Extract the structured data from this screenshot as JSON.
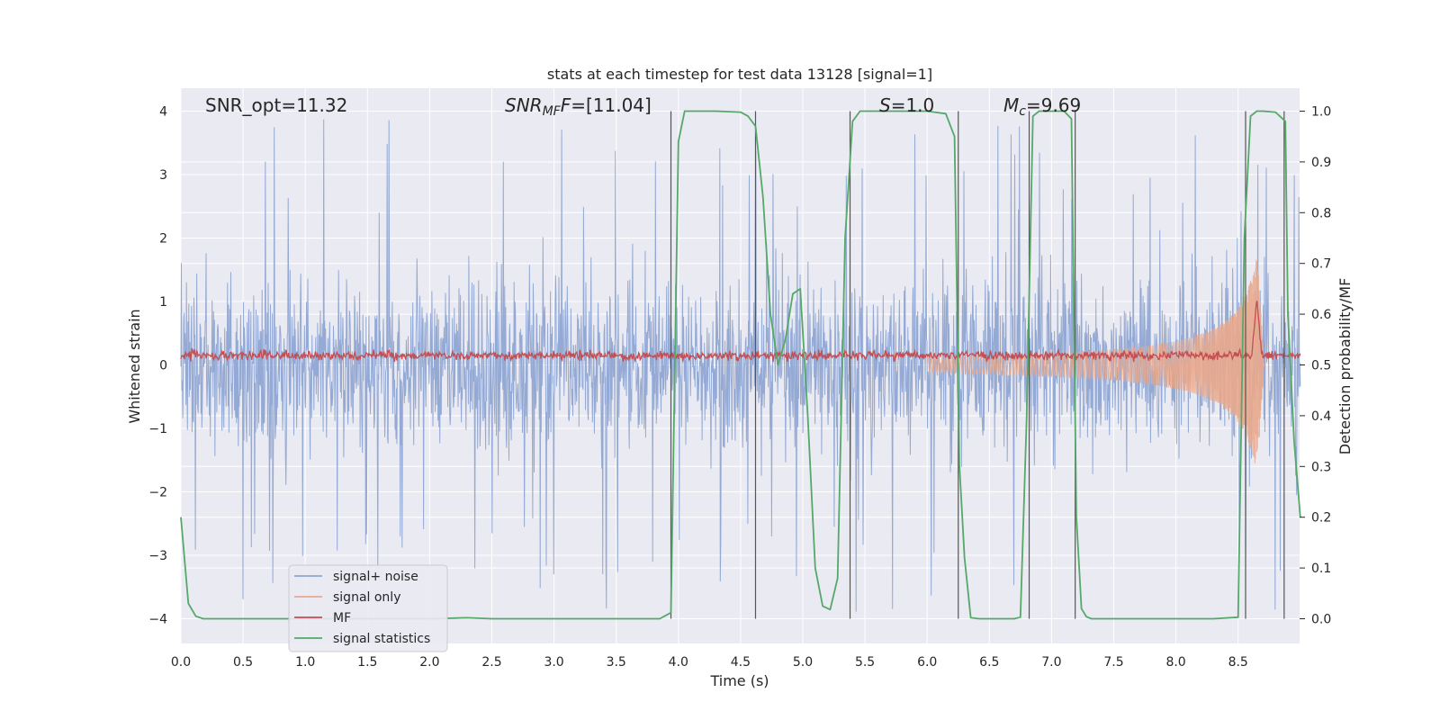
{
  "chart_data": {
    "type": "line",
    "title": "stats at each timestep for test data 13128 [signal=1]",
    "xlabel": "Time (s)",
    "ylabel_left": "Whitened strain",
    "ylabel_right": "Detection probability/MF",
    "xlim": [
      0.0,
      9.0
    ],
    "ylim_left": [
      -4.4,
      4.4
    ],
    "ylim_right": [
      -0.05,
      1.05
    ],
    "xticks": [
      "0.0",
      "0.5",
      "1.0",
      "1.5",
      "2.0",
      "2.5",
      "3.0",
      "3.5",
      "4.0",
      "4.5",
      "5.0",
      "5.5",
      "6.0",
      "6.5",
      "7.0",
      "7.5",
      "8.0",
      "8.5"
    ],
    "yticks_left": [
      "4",
      "3",
      "2",
      "1",
      "0",
      "−1",
      "−2",
      "−3",
      "−4"
    ],
    "yticks_right": [
      "1.0",
      "0.9",
      "0.8",
      "0.7",
      "0.6",
      "0.5",
      "0.4",
      "0.3",
      "0.2",
      "0.1",
      "0.0"
    ],
    "annotations": {
      "snr_opt": "SNR_opt=11.32",
      "snr_mf_base": "SNR",
      "snr_mf_sub": "MF",
      "snr_mf_rest": "=[11.04]",
      "s_base": "S",
      "s_rest": "=1.0",
      "mc_base": "M",
      "mc_sub": "c",
      "mc_rest": "=9.69"
    },
    "legend": [
      {
        "label": "signal+ noise",
        "color": "#8fa6d3"
      },
      {
        "label": "signal only",
        "color": "#e9a98c"
      },
      {
        "label": "MF",
        "color": "#c44e52"
      },
      {
        "label": "signal statistics",
        "color": "#55a868"
      }
    ],
    "legend_placement": "lower-left",
    "series": [
      {
        "name": "signal+ noise",
        "amplitude_envelope": [
          -4.0,
          4.0
        ],
        "typical_range": [
          -2.4,
          2.4
        ],
        "color": "#8fa6d3"
      },
      {
        "name": "signal only",
        "chirp_start_time": 6.0,
        "merger_time": 8.65,
        "peak_amplitude": 1.8,
        "color": "#e9a98c"
      },
      {
        "name": "MF",
        "baseline_range": [
          0.05,
          0.3
        ],
        "peak_time": 8.65,
        "peak_value": 1.05,
        "color": "#c44e52"
      },
      {
        "name": "signal statistics",
        "axis": "right",
        "color": "#55a868",
        "x": [
          0.0,
          0.06,
          0.12,
          0.18,
          0.3,
          0.6,
          1.0,
          1.5,
          2.0,
          2.3,
          2.5,
          3.0,
          3.5,
          3.85,
          3.94,
          4.0,
          4.05,
          4.1,
          4.2,
          4.3,
          4.5,
          4.56,
          4.62,
          4.68,
          4.74,
          4.8,
          4.86,
          4.92,
          4.98,
          5.04,
          5.1,
          5.16,
          5.22,
          5.28,
          5.34,
          5.4,
          5.46,
          5.5,
          5.6,
          5.8,
          6.0,
          6.15,
          6.22,
          6.26,
          6.3,
          6.35,
          6.42,
          6.5,
          6.7,
          6.75,
          6.8,
          6.85,
          6.9,
          6.95,
          7.0,
          7.1,
          7.16,
          7.2,
          7.24,
          7.28,
          7.32,
          7.4,
          7.6,
          8.0,
          8.3,
          8.5,
          8.55,
          8.6,
          8.65,
          8.7,
          8.8,
          8.88,
          8.9,
          8.95,
          9.0
        ],
        "y": [
          0.2,
          0.03,
          0.005,
          0.0,
          0.0,
          0.0,
          0.0,
          0.0,
          0.0,
          0.002,
          0.0,
          0.0,
          0.0,
          0.0,
          0.012,
          0.94,
          1.0,
          1.0,
          1.0,
          1.0,
          0.998,
          0.99,
          0.97,
          0.83,
          0.6,
          0.5,
          0.55,
          0.64,
          0.65,
          0.4,
          0.1,
          0.025,
          0.018,
          0.08,
          0.75,
          0.98,
          1.0,
          1.0,
          1.0,
          1.0,
          1.0,
          0.995,
          0.95,
          0.3,
          0.12,
          0.002,
          0.0,
          0.0,
          0.0,
          0.003,
          0.4,
          0.99,
          1.0,
          1.0,
          1.0,
          1.0,
          0.985,
          0.2,
          0.02,
          0.004,
          0.0,
          0.0,
          0.0,
          0.0,
          0.0,
          0.003,
          0.75,
          0.99,
          1.0,
          1.0,
          0.998,
          0.98,
          0.6,
          0.35,
          0.2
        ]
      }
    ],
    "vertical_markers": [
      3.94,
      4.62,
      5.38,
      6.25,
      6.82,
      7.19,
      8.56,
      8.87
    ]
  }
}
